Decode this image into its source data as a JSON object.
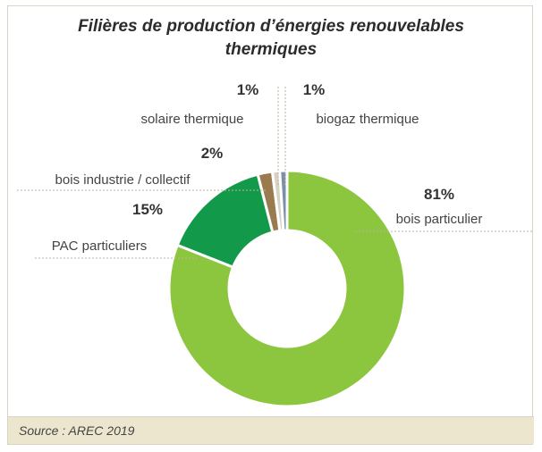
{
  "chart_data": {
    "type": "pie",
    "title_line1": "Filières de production d’énergies renouvelables",
    "title_line2": "thermiques",
    "slices": [
      {
        "label": "bois particulier",
        "value": 81,
        "pct_label": "81%",
        "color": "#8cc63f"
      },
      {
        "label": "PAC particuliers",
        "value": 15,
        "pct_label": "15%",
        "color": "#129a4a"
      },
      {
        "label": "bois industrie / collectif",
        "value": 2,
        "pct_label": "2%",
        "color": "#9a7b4f"
      },
      {
        "label": "solaire thermique",
        "value": 1,
        "pct_label": "1%",
        "color": "#d8d2c2"
      },
      {
        "label": "biogaz thermique",
        "value": 1,
        "pct_label": "1%",
        "color": "#7b8fa8"
      }
    ]
  },
  "footer": {
    "source": "Source : AREC 2019",
    "background": "#ece6cf"
  }
}
